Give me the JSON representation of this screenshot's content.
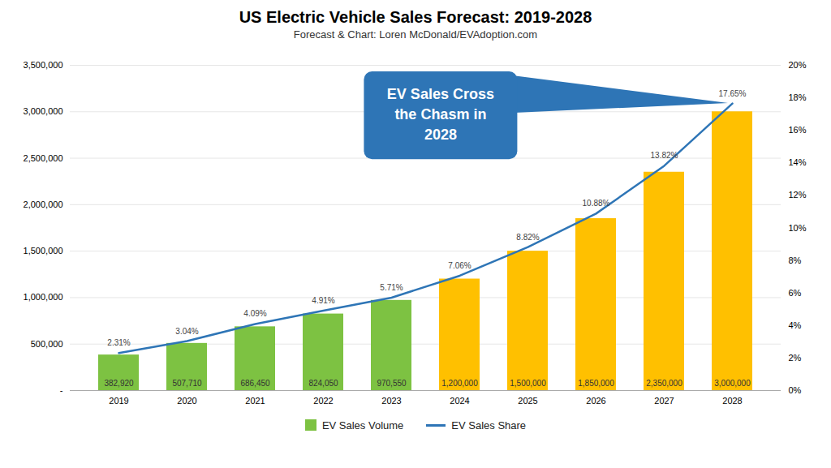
{
  "chart_data": {
    "type": "bar",
    "title": "US Electric Vehicle Sales Forecast: 2019-2028",
    "subtitle": "Forecast & Chart: Loren McDonald/EVAdoption.com",
    "categories": [
      "2019",
      "2020",
      "2021",
      "2022",
      "2023",
      "2024",
      "2025",
      "2026",
      "2027",
      "2028"
    ],
    "series": [
      {
        "name": "EV Sales Volume",
        "type": "bar",
        "colors": [
          "#7DC242",
          "#7DC242",
          "#7DC242",
          "#7DC242",
          "#7DC242",
          "#FFC000",
          "#FFC000",
          "#FFC000",
          "#FFC000",
          "#FFC000"
        ],
        "values": [
          382920,
          507710,
          686450,
          824050,
          970550,
          1200000,
          1500000,
          1850000,
          2350000,
          3000000
        ],
        "value_labels": [
          "382,920",
          "507,710",
          "686,450",
          "824,050",
          "970,550",
          "1,200,000",
          "1,500,000",
          "1,850,000",
          "2,350,000",
          "3,000,000"
        ]
      },
      {
        "name": "EV Sales Share",
        "type": "line",
        "color": "#2E75B6",
        "axis": "y2",
        "values": [
          2.31,
          3.04,
          4.09,
          4.91,
          5.71,
          7.06,
          8.82,
          10.88,
          13.82,
          17.65
        ],
        "value_labels": [
          "2.31%",
          "3.04%",
          "4.09%",
          "4.91%",
          "5.71%",
          "7.06%",
          "8.82%",
          "10.88%",
          "13.82%",
          "17.65%"
        ]
      }
    ],
    "ylim": [
      0,
      3500000
    ],
    "yticks": [
      {
        "value": 0,
        "label": "-"
      },
      {
        "value": 500000,
        "label": "500,000"
      },
      {
        "value": 1000000,
        "label": "1,000,000"
      },
      {
        "value": 1500000,
        "label": "1,500,000"
      },
      {
        "value": 2000000,
        "label": "2,000,000"
      },
      {
        "value": 2500000,
        "label": "2,500,000"
      },
      {
        "value": 3000000,
        "label": "3,000,000"
      },
      {
        "value": 3500000,
        "label": "3,500,000"
      }
    ],
    "y2lim": [
      0,
      20
    ],
    "y2ticks": [
      {
        "value": 0,
        "label": "0%"
      },
      {
        "value": 2,
        "label": "2%"
      },
      {
        "value": 4,
        "label": "4%"
      },
      {
        "value": 6,
        "label": "6%"
      },
      {
        "value": 8,
        "label": "8%"
      },
      {
        "value": 10,
        "label": "10%"
      },
      {
        "value": 12,
        "label": "12%"
      },
      {
        "value": 14,
        "label": "14%"
      },
      {
        "value": 16,
        "label": "16%"
      },
      {
        "value": 18,
        "label": "18%"
      },
      {
        "value": 20,
        "label": "20%"
      }
    ],
    "grid": true,
    "legend": "bottom",
    "data_labels": true,
    "annotations": [
      "EV Sales Cross\nthe Chasm in\n2028"
    ]
  }
}
